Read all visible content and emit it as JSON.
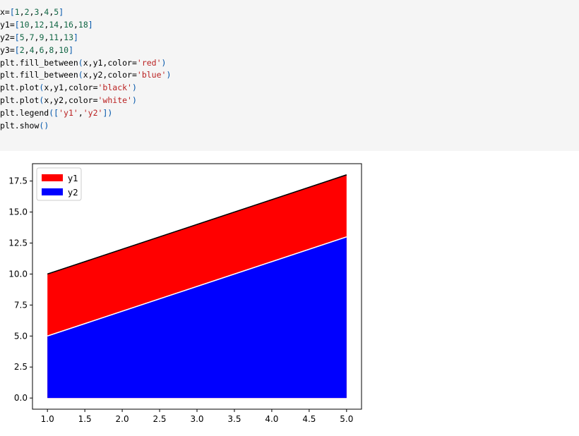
{
  "code_cell": {
    "lines": [
      [
        {
          "t": "x=",
          "c": "p"
        },
        {
          "t": "[",
          "c": "par"
        },
        {
          "t": "1",
          "c": "num"
        },
        {
          "t": ",",
          "c": "p"
        },
        {
          "t": "2",
          "c": "num"
        },
        {
          "t": ",",
          "c": "p"
        },
        {
          "t": "3",
          "c": "num"
        },
        {
          "t": ",",
          "c": "p"
        },
        {
          "t": "4",
          "c": "num"
        },
        {
          "t": ",",
          "c": "p"
        },
        {
          "t": "5",
          "c": "num"
        },
        {
          "t": "]",
          "c": "par"
        }
      ],
      [
        {
          "t": "y1=",
          "c": "p"
        },
        {
          "t": "[",
          "c": "par"
        },
        {
          "t": "10",
          "c": "num"
        },
        {
          "t": ",",
          "c": "p"
        },
        {
          "t": "12",
          "c": "num"
        },
        {
          "t": ",",
          "c": "p"
        },
        {
          "t": "14",
          "c": "num"
        },
        {
          "t": ",",
          "c": "p"
        },
        {
          "t": "16",
          "c": "num"
        },
        {
          "t": ",",
          "c": "p"
        },
        {
          "t": "18",
          "c": "num"
        },
        {
          "t": "]",
          "c": "par"
        }
      ],
      [
        {
          "t": "y2=",
          "c": "p"
        },
        {
          "t": "[",
          "c": "par"
        },
        {
          "t": "5",
          "c": "num"
        },
        {
          "t": ",",
          "c": "p"
        },
        {
          "t": "7",
          "c": "num"
        },
        {
          "t": ",",
          "c": "p"
        },
        {
          "t": "9",
          "c": "num"
        },
        {
          "t": ",",
          "c": "p"
        },
        {
          "t": "11",
          "c": "num"
        },
        {
          "t": ",",
          "c": "p"
        },
        {
          "t": "13",
          "c": "num"
        },
        {
          "t": "]",
          "c": "par"
        }
      ],
      [
        {
          "t": "y3=",
          "c": "p"
        },
        {
          "t": "[",
          "c": "par"
        },
        {
          "t": "2",
          "c": "num"
        },
        {
          "t": ",",
          "c": "p"
        },
        {
          "t": "4",
          "c": "num"
        },
        {
          "t": ",",
          "c": "p"
        },
        {
          "t": "6",
          "c": "num"
        },
        {
          "t": ",",
          "c": "p"
        },
        {
          "t": "8",
          "c": "num"
        },
        {
          "t": ",",
          "c": "p"
        },
        {
          "t": "10",
          "c": "num"
        },
        {
          "t": "]",
          "c": "par"
        }
      ],
      [
        {
          "t": "plt.fill_between",
          "c": "p"
        },
        {
          "t": "(",
          "c": "par"
        },
        {
          "t": "x,y1,color=",
          "c": "p"
        },
        {
          "t": "'red'",
          "c": "str"
        },
        {
          "t": ")",
          "c": "par"
        }
      ],
      [
        {
          "t": "plt.fill_between",
          "c": "p"
        },
        {
          "t": "(",
          "c": "par"
        },
        {
          "t": "x,y2,color=",
          "c": "p"
        },
        {
          "t": "'blue'",
          "c": "str"
        },
        {
          "t": ")",
          "c": "par"
        }
      ],
      [
        {
          "t": "plt.plot",
          "c": "p"
        },
        {
          "t": "(",
          "c": "par"
        },
        {
          "t": "x,y1,color=",
          "c": "p"
        },
        {
          "t": "'black'",
          "c": "str"
        },
        {
          "t": ")",
          "c": "par"
        }
      ],
      [
        {
          "t": "plt.plot",
          "c": "p"
        },
        {
          "t": "(",
          "c": "par"
        },
        {
          "t": "x,y2,color=",
          "c": "p"
        },
        {
          "t": "'white'",
          "c": "str"
        },
        {
          "t": ")",
          "c": "par"
        }
      ],
      [
        {
          "t": "plt.legend",
          "c": "p"
        },
        {
          "t": "([",
          "c": "par"
        },
        {
          "t": "'y1'",
          "c": "str"
        },
        {
          "t": ",",
          "c": "p"
        },
        {
          "t": "'y2'",
          "c": "str"
        },
        {
          "t": "])",
          "c": "par"
        }
      ],
      [
        {
          "t": "plt.show",
          "c": "p"
        },
        {
          "t": "()",
          "c": "par"
        }
      ]
    ]
  },
  "chart_data": {
    "type": "area",
    "x": [
      1,
      2,
      3,
      4,
      5
    ],
    "series": [
      {
        "name": "y1",
        "values": [
          10,
          12,
          14,
          16,
          18
        ],
        "fill_color": "#ff0000",
        "line_color": "#000000"
      },
      {
        "name": "y2",
        "values": [
          5,
          7,
          9,
          11,
          13
        ],
        "fill_color": "#0000ff",
        "line_color": "#ffffff"
      }
    ],
    "baseline": 0,
    "xlim": [
      0.8,
      5.2
    ],
    "ylim": [
      -0.9,
      18.9
    ],
    "x_ticks": [
      1.0,
      1.5,
      2.0,
      2.5,
      3.0,
      3.5,
      4.0,
      4.5,
      5.0
    ],
    "x_tick_labels": [
      "1.0",
      "1.5",
      "2.0",
      "2.5",
      "3.0",
      "3.5",
      "4.0",
      "4.5",
      "5.0"
    ],
    "y_ticks": [
      0.0,
      2.5,
      5.0,
      7.5,
      10.0,
      12.5,
      15.0,
      17.5
    ],
    "y_tick_labels": [
      "0.0",
      "2.5",
      "5.0",
      "7.5",
      "10.0",
      "12.5",
      "15.0",
      "17.5"
    ],
    "grid": false,
    "legend_position": "top-left",
    "title": "",
    "xlabel": "",
    "ylabel": ""
  }
}
